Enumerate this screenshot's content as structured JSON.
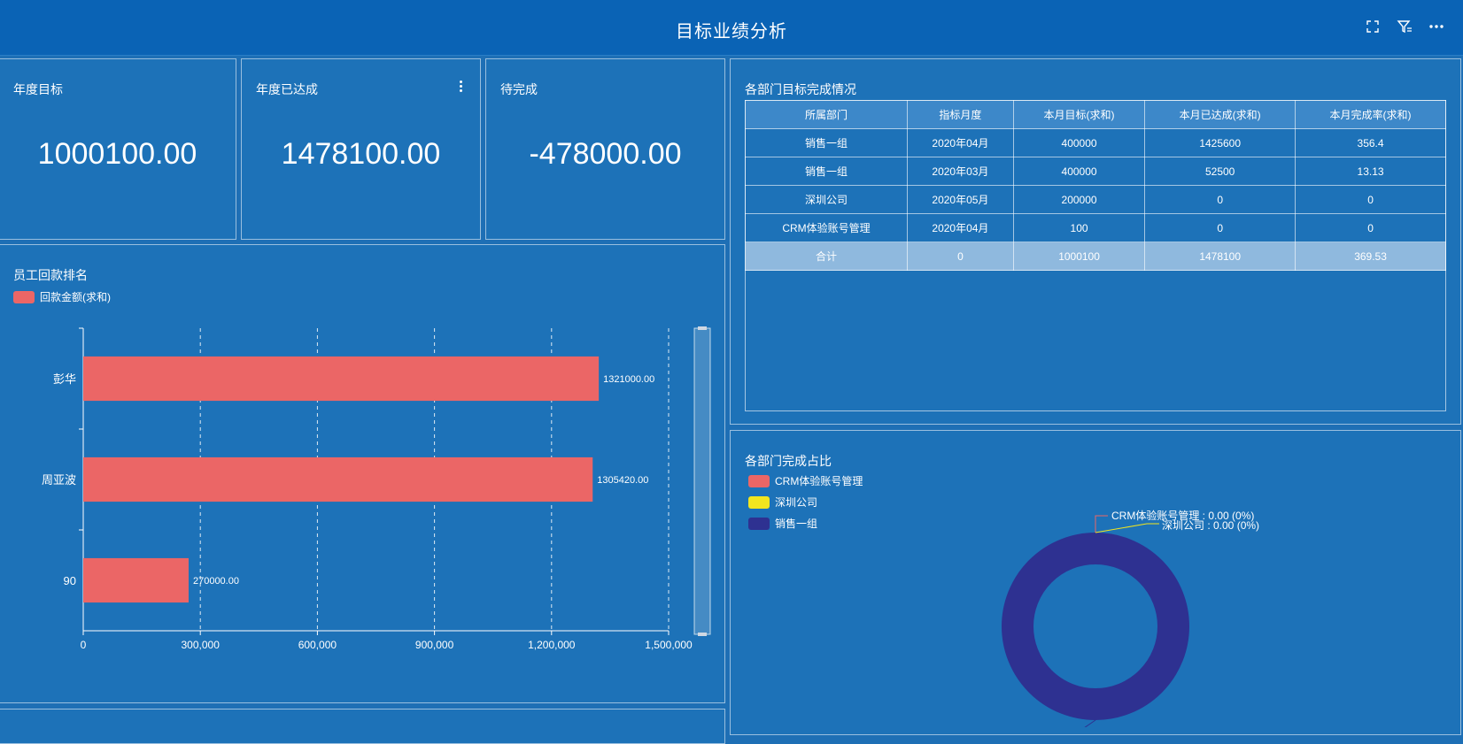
{
  "header": {
    "title": "目标业绩分析"
  },
  "kpis": [
    {
      "label": "年度目标",
      "value": "1000100.00"
    },
    {
      "label": "年度已达成",
      "value": "1478100.00"
    },
    {
      "label": "待完成",
      "value": "-478000.00"
    }
  ],
  "dept_table": {
    "title": "各部门目标完成情况",
    "columns": [
      "所属部门",
      "指标月度",
      "本月目标(求和)",
      "本月已达成(求和)",
      "本月完成率(求和)"
    ],
    "rows": [
      [
        "销售一组",
        "2020年04月",
        "400000",
        "1425600",
        "356.4"
      ],
      [
        "销售一组",
        "2020年03月",
        "400000",
        "52500",
        "13.13"
      ],
      [
        "深圳公司",
        "2020年05月",
        "200000",
        "0",
        "0"
      ],
      [
        "CRM体验账号管理",
        "2020年04月",
        "100",
        "0",
        "0"
      ]
    ],
    "total": [
      "合计",
      "0",
      "1000100",
      "1478100",
      "369.53"
    ]
  },
  "ranking": {
    "title": "员工回款排名",
    "legend": "回款金额(求和)"
  },
  "share": {
    "title": "各部门完成占比",
    "legend": [
      "CRM体验账号管理",
      "深圳公司",
      "销售一组"
    ],
    "callouts": [
      "CRM体验账号管理 : 0.00 (0%)",
      "深圳公司 : 0.00 (0%)"
    ]
  },
  "colors": {
    "bar": "#eb6666",
    "crm": "#eb6666",
    "shenzhen": "#f2e51e",
    "sales": "#2e3191",
    "background": "#1e6fb5"
  },
  "chart_data": [
    {
      "type": "bar",
      "orientation": "horizontal",
      "title": "员工回款排名",
      "categories": [
        "彭华",
        "周亚波",
        "90"
      ],
      "series": [
        {
          "name": "回款金额(求和)",
          "values": [
            1321000,
            1305420,
            270000
          ]
        }
      ],
      "value_labels": [
        "1321000.00",
        "1305420.00",
        "270000.00"
      ],
      "xlim": [
        0,
        1500000
      ],
      "xticks": [
        0,
        300000,
        600000,
        900000,
        1200000,
        1500000
      ],
      "xtick_labels": [
        "0",
        "300,000",
        "600,000",
        "900,000",
        "1,200,000",
        "1,500,000"
      ],
      "grid": "vertical-dashed",
      "legend": "top-left"
    },
    {
      "type": "pie",
      "style": "donut",
      "title": "各部门完成占比",
      "categories": [
        "CRM体验账号管理",
        "深圳公司",
        "销售一组"
      ],
      "values": [
        0,
        0,
        1478100
      ],
      "legend": "top-left"
    }
  ]
}
